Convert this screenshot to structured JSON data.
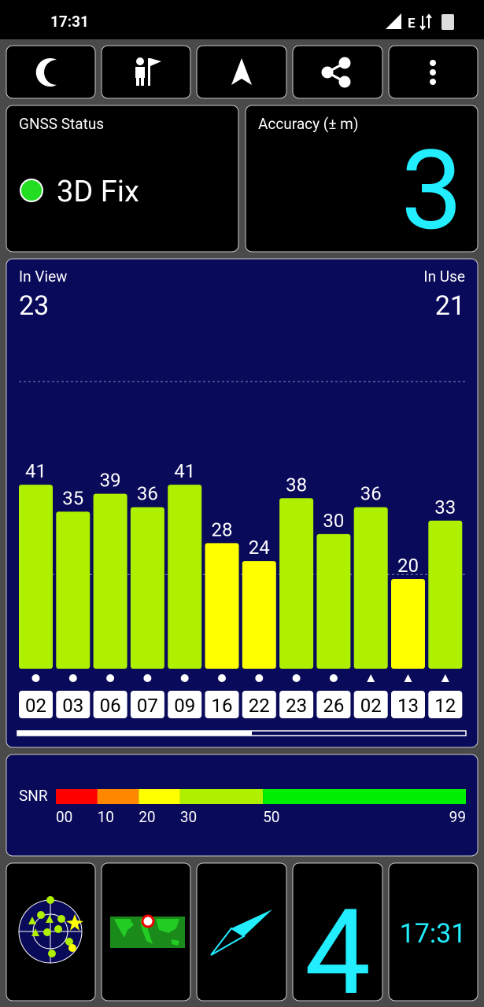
{
  "status_bar": {
    "time": "17:31",
    "network": "E"
  },
  "gnss": {
    "label": "GNSS Status",
    "value": "3D Fix"
  },
  "accuracy": {
    "label": "Accuracy (± m)",
    "value": "3"
  },
  "in_view": {
    "label": "In View",
    "value": "23"
  },
  "in_use": {
    "label": "In Use",
    "value": "21"
  },
  "chart_data": {
    "type": "bar",
    "categories": [
      "02",
      "03",
      "06",
      "07",
      "09",
      "16",
      "22",
      "23",
      "26",
      "02",
      "13",
      "12"
    ],
    "values": [
      41,
      35,
      39,
      36,
      41,
      28,
      24,
      38,
      30,
      36,
      20,
      33
    ],
    "colors": [
      "#aef000",
      "#aef000",
      "#aef000",
      "#aef000",
      "#aef000",
      "#ffff00",
      "#ffff00",
      "#aef000",
      "#aef000",
      "#aef000",
      "#ffff00",
      "#aef000"
    ],
    "markers": [
      "circle",
      "circle",
      "circle",
      "circle",
      "circle",
      "circle",
      "circle",
      "circle",
      "circle",
      "triangle",
      "triangle",
      "triangle"
    ],
    "ylim": [
      0,
      64
    ],
    "yticks": [
      21,
      64
    ],
    "grid": true
  },
  "snr_scale": {
    "label": "SNR",
    "ticks": [
      {
        "value": 0,
        "label": "00"
      },
      10,
      20,
      30,
      50,
      99
    ],
    "colors": [
      "#ff0000",
      "#ff8800",
      "#ffff00",
      "#aef000",
      "#00ee00"
    ]
  },
  "tiles": {
    "satellite_count": "4",
    "clock": "17:31"
  }
}
